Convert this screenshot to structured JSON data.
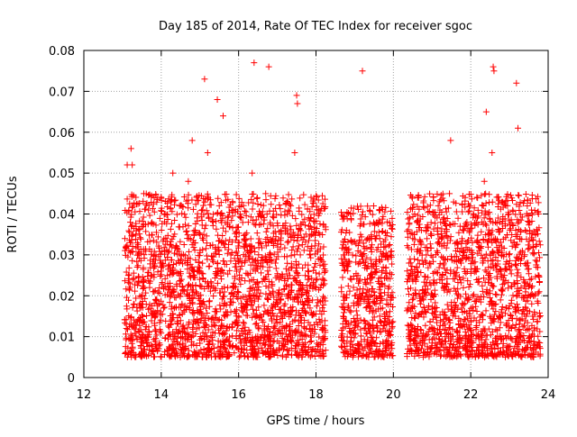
{
  "chart_data": {
    "type": "scatter",
    "title": "Day 185 of 2014, Rate Of TEC Index for receiver sgoc",
    "xlabel": "GPS time / hours",
    "ylabel": "ROTI / TECUs",
    "xlim": [
      12,
      24
    ],
    "ylim": [
      0,
      0.08
    ],
    "x_ticks": [
      12,
      14,
      16,
      18,
      20,
      22,
      24
    ],
    "x_tick_labels": [
      "12",
      "14",
      "16",
      "18",
      "20",
      "22",
      "24"
    ],
    "y_ticks": [
      0,
      0.01,
      0.02,
      0.03,
      0.04,
      0.05,
      0.06,
      0.07,
      0.08
    ],
    "y_tick_labels": [
      "0",
      "0.01",
      "0.02",
      "0.03",
      "0.04",
      "0.05",
      "0.06",
      "0.07",
      "0.08"
    ],
    "grid": true,
    "marker": "+",
    "marker_color": "#ff0000",
    "series": [
      {
        "name": "ROTI",
        "x": [
          13.1,
          13.15,
          13.2,
          13.25,
          13.3,
          13.4,
          13.55,
          13.7,
          13.85,
          14.0,
          14.1,
          14.25,
          14.4,
          14.55,
          14.7,
          14.85,
          15.0,
          15.1,
          15.2,
          15.35,
          15.5,
          15.65,
          15.8,
          15.95,
          16.1,
          16.25,
          16.35,
          16.45,
          16.55,
          16.7,
          16.8,
          16.95,
          17.1,
          17.2,
          17.35,
          17.45,
          17.55,
          17.7,
          17.85,
          18.0,
          18.1,
          18.2,
          18.7,
          18.85,
          19.0,
          19.15,
          19.25,
          19.4,
          19.55,
          19.65,
          19.75,
          19.85,
          19.95,
          20.4,
          20.55,
          20.7,
          20.85,
          21.0,
          21.15,
          21.3,
          21.45,
          21.6,
          21.75,
          21.9,
          22.05,
          22.2,
          22.35,
          22.45,
          22.55,
          22.65,
          22.8,
          22.95,
          23.05,
          23.2,
          23.3,
          23.45,
          23.6,
          23.75,
          13.12,
          13.22,
          14.3,
          14.8,
          15.12,
          15.45,
          15.6,
          16.4,
          16.78,
          17.5,
          17.52,
          19.2,
          21.48,
          22.58,
          22.6,
          23.18,
          23.22,
          22.4
        ],
        "y": [
          0.012,
          0.025,
          0.038,
          0.052,
          0.018,
          0.03,
          0.045,
          0.022,
          0.015,
          0.028,
          0.04,
          0.02,
          0.032,
          0.01,
          0.048,
          0.025,
          0.018,
          0.035,
          0.055,
          0.022,
          0.042,
          0.015,
          0.03,
          0.026,
          0.012,
          0.038,
          0.05,
          0.02,
          0.033,
          0.045,
          0.01,
          0.028,
          0.036,
          0.018,
          0.042,
          0.055,
          0.025,
          0.014,
          0.03,
          0.022,
          0.035,
          0.01,
          0.015,
          0.028,
          0.02,
          0.035,
          0.012,
          0.025,
          0.018,
          0.038,
          0.03,
          0.015,
          0.008,
          0.025,
          0.04,
          0.018,
          0.03,
          0.012,
          0.035,
          0.022,
          0.045,
          0.015,
          0.028,
          0.038,
          0.02,
          0.032,
          0.048,
          0.025,
          0.055,
          0.018,
          0.03,
          0.042,
          0.012,
          0.035,
          0.022,
          0.028,
          0.015,
          0.04,
          0.052,
          0.056,
          0.05,
          0.058,
          0.073,
          0.068,
          0.064,
          0.077,
          0.076,
          0.069,
          0.067,
          0.075,
          0.058,
          0.076,
          0.075,
          0.072,
          0.061,
          0.065
        ],
        "cloud_bands": [
          {
            "x_range": [
              13.05,
              18.25
            ],
            "y_range": [
              0.005,
              0.045
            ]
          },
          {
            "x_range": [
              18.65,
              20.0
            ],
            "y_range": [
              0.005,
              0.042
            ]
          },
          {
            "x_range": [
              20.35,
              23.8
            ],
            "y_range": [
              0.005,
              0.045
            ]
          }
        ]
      }
    ]
  }
}
